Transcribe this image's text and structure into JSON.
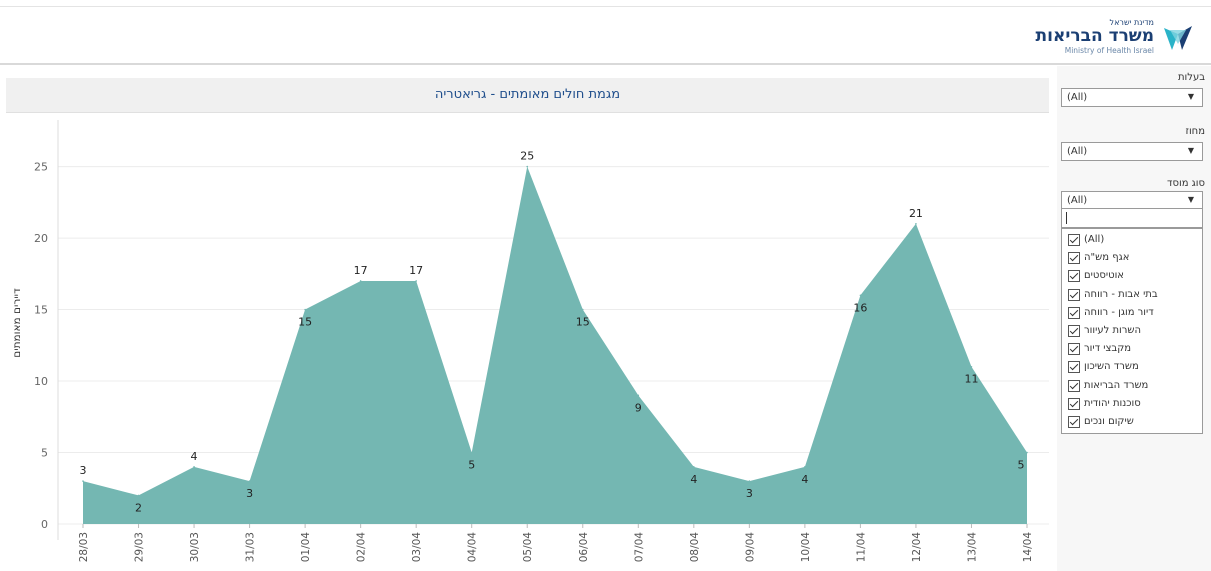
{
  "header": {
    "logo_small": "מדינת ישראל",
    "logo_main": "משרד הבריאות",
    "logo_english": "Ministry of Health Israel"
  },
  "colors": {
    "area_fill": "#74b7b2",
    "title_text": "#1f4e8c",
    "grid": "#ececec"
  },
  "filters": {
    "ownership": {
      "label": "בעלות",
      "value": "(All)"
    },
    "district": {
      "label": "מחוז",
      "value": "(All)"
    },
    "institution_type": {
      "label": "סוג מוסד",
      "value": "(All)",
      "options": [
        {
          "label": "(All)",
          "checked": true
        },
        {
          "label": "אגף מש\"ה",
          "checked": true
        },
        {
          "label": "אוטיסטים",
          "checked": true
        },
        {
          "label": "בתי אבות - רווחה",
          "checked": true
        },
        {
          "label": "דיור מוגן - רווחה",
          "checked": true
        },
        {
          "label": "השרות לעיוור",
          "checked": true
        },
        {
          "label": "מקבצי דיור",
          "checked": true
        },
        {
          "label": "משרד השיכון",
          "checked": true
        },
        {
          "label": "משרד הבריאות",
          "checked": true
        },
        {
          "label": "סוכנות יהודית",
          "checked": true
        },
        {
          "label": "שיקום ונכים",
          "checked": true
        }
      ]
    }
  },
  "chart_data": {
    "type": "area",
    "title": "מגמת חולים מאומתים - גריאטריה",
    "ylabel": "דיירים מאומתים",
    "xlabel": "",
    "x": [
      "28/03",
      "29/03",
      "30/03",
      "31/03",
      "01/04",
      "02/04",
      "03/04",
      "04/04",
      "05/04",
      "06/04",
      "07/04",
      "08/04",
      "09/04",
      "10/04",
      "11/04",
      "12/04",
      "13/04",
      "14/04"
    ],
    "values": [
      3,
      2,
      4,
      3,
      15,
      17,
      17,
      5,
      25,
      15,
      9,
      4,
      3,
      4,
      16,
      21,
      11,
      5
    ],
    "ylim": [
      0,
      27
    ],
    "yticks": [
      0,
      5,
      10,
      15,
      20,
      25
    ],
    "grid": true,
    "data_labels": true
  }
}
